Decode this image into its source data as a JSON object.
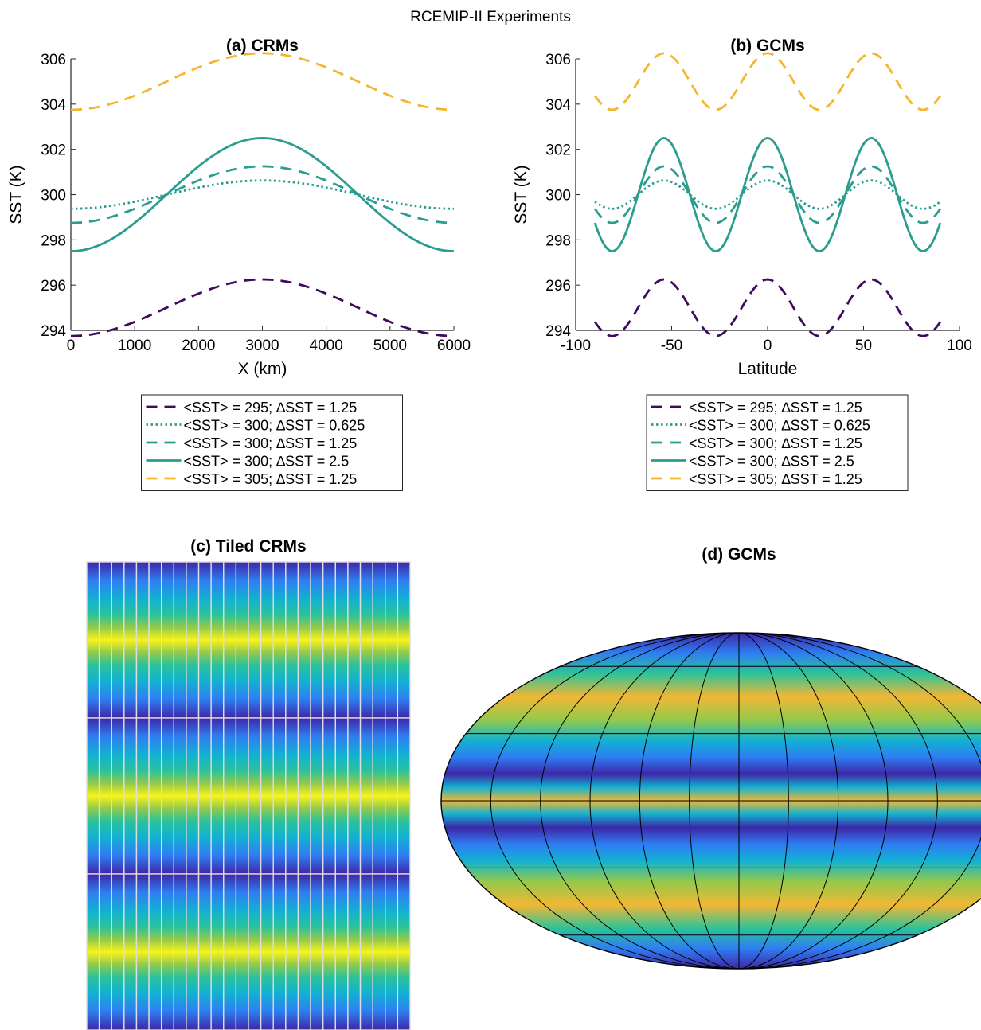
{
  "figure": {
    "title": "RCEMIP-II Experiments"
  },
  "chart_data": [
    {
      "type": "line",
      "title": "(a) CRMs",
      "xlabel": "X (km)",
      "ylabel": "SST (K)",
      "xlim": [
        0,
        6000
      ],
      "ylim": [
        294,
        306
      ],
      "xticks": [
        0,
        1000,
        2000,
        3000,
        4000,
        5000,
        6000
      ],
      "yticks": [
        294,
        296,
        298,
        300,
        302,
        304,
        306
      ],
      "formula": "SST(x) = mean - dSST * cos(2*pi*x/6000)",
      "legend_position": "below",
      "series": [
        {
          "name": "<SST> = 295; ∆SST = 1.25",
          "mean": 295,
          "dsst": 1.25,
          "color": "#3e0a5e",
          "style": "dashed"
        },
        {
          "name": "<SST> = 300; ∆SST = 0.625",
          "mean": 300,
          "dsst": 0.625,
          "color": "#2a9d8f",
          "style": "dotted"
        },
        {
          "name": "<SST> = 300; ∆SST = 1.25",
          "mean": 300,
          "dsst": 1.25,
          "color": "#2a9d8f",
          "style": "dashed"
        },
        {
          "name": "<SST> = 300; ∆SST = 2.5",
          "mean": 300,
          "dsst": 2.5,
          "color": "#2a9d8f",
          "style": "solid"
        },
        {
          "name": "<SST> = 305; ∆SST = 1.25",
          "mean": 305,
          "dsst": 1.25,
          "color": "#f5b52e",
          "style": "dashed"
        }
      ]
    },
    {
      "type": "line",
      "title": "(b) GCMs",
      "xlabel": "Latitude",
      "ylabel": "SST (K)",
      "xlim": [
        -100,
        100
      ],
      "ylim": [
        294,
        306
      ],
      "xticks": [
        -100,
        -50,
        0,
        50,
        100
      ],
      "yticks": [
        294,
        296,
        298,
        300,
        302,
        304,
        306
      ],
      "x_extent": [
        -90,
        90
      ],
      "formula": "SST(lat) = mean + dSST * cos(2*pi*lat/54)",
      "legend_position": "below",
      "series": [
        {
          "name": "<SST> = 295; ∆SST = 1.25",
          "mean": 295,
          "dsst": 1.25,
          "color": "#3e0a5e",
          "style": "dashed"
        },
        {
          "name": "<SST> = 300; ∆SST = 0.625",
          "mean": 300,
          "dsst": 0.625,
          "color": "#2a9d8f",
          "style": "dotted"
        },
        {
          "name": "<SST> = 300; ∆SST = 1.25",
          "mean": 300,
          "dsst": 1.25,
          "color": "#2a9d8f",
          "style": "dashed"
        },
        {
          "name": "<SST> = 300; ∆SST = 2.5",
          "mean": 300,
          "dsst": 2.5,
          "color": "#2a9d8f",
          "style": "solid"
        },
        {
          "name": "<SST> = 305; ∆SST = 1.25",
          "mean": 305,
          "dsst": 1.25,
          "color": "#f5b52e",
          "style": "dashed"
        }
      ]
    },
    {
      "type": "heatmap",
      "title": "(c) Tiled CRMs",
      "tiles_columns": 26,
      "tiles_rows": 3,
      "pattern": "each tile: cool at top and bottom edges, warm in the middle",
      "colormap": [
        "#3e26a8",
        "#2e7ef2",
        "#12b2d1",
        "#2bc39a",
        "#93c94b",
        "#f2b734",
        "#f8f31a"
      ]
    },
    {
      "type": "heatmap",
      "title": "(d) GCMs",
      "projection": "Mollweide",
      "bands": 3,
      "pattern": "zonal bands, cool at ~30° latitudes, warm at equator and ~60°",
      "colormap": [
        "#3e26a8",
        "#2e7ef2",
        "#12b2d1",
        "#2bc39a",
        "#93c94b",
        "#f2b734",
        "#f8f31a"
      ]
    }
  ]
}
